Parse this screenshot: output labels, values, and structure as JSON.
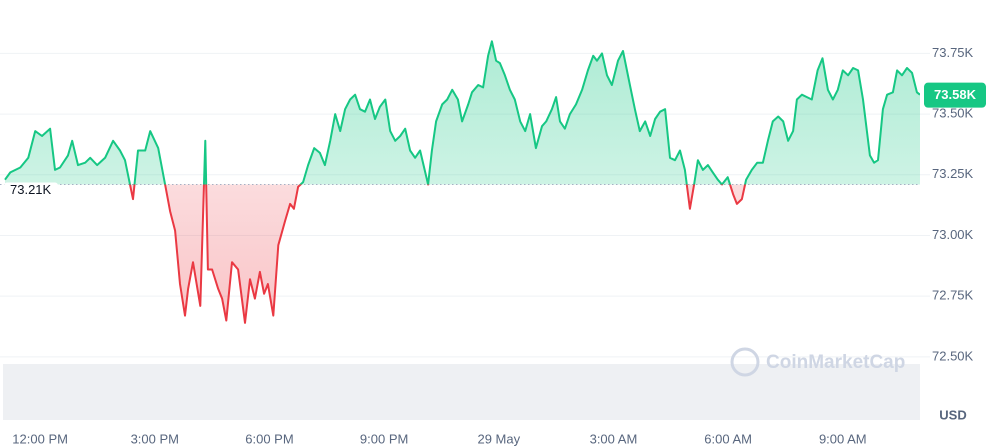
{
  "chart_data": {
    "type": "line",
    "x": [
      -0.92,
      -0.78,
      -0.52,
      -0.31,
      -0.13,
      0.05,
      0.26,
      0.39,
      0.52,
      0.73,
      0.84,
      0.99,
      1.18,
      1.31,
      1.49,
      1.7,
      1.91,
      2.09,
      2.22,
      2.43,
      2.56,
      2.75,
      2.88,
      3.09,
      3.27,
      3.4,
      3.53,
      3.66,
      3.79,
      3.87,
      4.0,
      4.19,
      4.32,
      4.39,
      4.5,
      4.66,
      4.76,
      4.87,
      5.02,
      5.18,
      5.36,
      5.49,
      5.62,
      5.75,
      5.86,
      5.96,
      6.1,
      6.23,
      6.41,
      6.54,
      6.64,
      6.75,
      6.88,
      7.01,
      7.17,
      7.32,
      7.45,
      7.59,
      7.72,
      7.85,
      7.98,
      8.11,
      8.24,
      8.37,
      8.5,
      8.63,
      8.76,
      8.89,
      9.03,
      9.16,
      9.29,
      9.42,
      9.55,
      9.68,
      9.81,
      9.94,
      10.15,
      10.25,
      10.36,
      10.52,
      10.65,
      10.78,
      10.93,
      11.04,
      11.2,
      11.3,
      11.46,
      11.59,
      11.72,
      11.82,
      11.93,
      12.03,
      12.16,
      12.29,
      12.42,
      12.56,
      12.69,
      12.82,
      12.97,
      13.13,
      13.24,
      13.39,
      13.5,
      13.6,
      13.73,
      13.86,
      14.02,
      14.18,
      14.33,
      14.47,
      14.57,
      14.7,
      14.83,
      14.96,
      15.12,
      15.25,
      15.43,
      15.56,
      15.69,
      15.83,
      15.96,
      16.09,
      16.22,
      16.35,
      16.48,
      16.61,
      16.74,
      16.87,
      17.0,
      17.11,
      17.21,
      17.34,
      17.47,
      17.6,
      17.73,
      17.84,
      17.99,
      18.13,
      18.23,
      18.36,
      18.47,
      18.62,
      18.76,
      18.91,
      19.04,
      19.17,
      19.31,
      19.44,
      19.57,
      19.7,
      19.8,
      19.93,
      20.06,
      20.19,
      20.34,
      20.47,
      20.61,
      20.74,
      20.87,
      21.0,
      21.14,
      21.27,
      21.4,
      21.53,
      21.63,
      21.71,
      21.82,
      21.92,
      22.05,
      22.16,
      22.31,
      22.42,
      22.55,
      22.68,
      22.81,
      22.94,
      23.02
    ],
    "values": [
      73230,
      73260,
      73280,
      73320,
      73430,
      73410,
      73440,
      73270,
      73280,
      73330,
      73390,
      73290,
      73300,
      73320,
      73290,
      73320,
      73390,
      73350,
      73310,
      73150,
      73350,
      73350,
      73430,
      73360,
      73210,
      73100,
      73020,
      72800,
      72670,
      72780,
      72890,
      72710,
      73390,
      72860,
      72860,
      72780,
      72740,
      72650,
      72890,
      72860,
      72640,
      72820,
      72740,
      72850,
      72760,
      72800,
      72670,
      72960,
      73060,
      73130,
      73110,
      73200,
      73220,
      73290,
      73360,
      73340,
      73290,
      73390,
      73500,
      73430,
      73520,
      73560,
      73580,
      73520,
      73510,
      73560,
      73480,
      73530,
      73560,
      73430,
      73390,
      73410,
      73440,
      73350,
      73320,
      73350,
      73210,
      73350,
      73470,
      73540,
      73560,
      73600,
      73560,
      73470,
      73540,
      73590,
      73620,
      73610,
      73740,
      73800,
      73720,
      73710,
      73660,
      73600,
      73560,
      73470,
      73430,
      73500,
      73360,
      73450,
      73470,
      73520,
      73570,
      73470,
      73440,
      73500,
      73540,
      73600,
      73680,
      73740,
      73720,
      73750,
      73660,
      73620,
      73720,
      73760,
      73620,
      73520,
      73430,
      73470,
      73410,
      73480,
      73510,
      73520,
      73320,
      73310,
      73350,
      73270,
      73110,
      73210,
      73310,
      73270,
      73290,
      73260,
      73230,
      73210,
      73240,
      73170,
      73130,
      73150,
      73230,
      73270,
      73300,
      73300,
      73390,
      73470,
      73490,
      73470,
      73390,
      73430,
      73560,
      73580,
      73570,
      73560,
      73680,
      73730,
      73600,
      73560,
      73600,
      73680,
      73660,
      73690,
      73680,
      73560,
      73430,
      73330,
      73300,
      73310,
      73520,
      73580,
      73590,
      73680,
      73660,
      73690,
      73670,
      73590,
      73580
    ],
    "color_up": "#16c784",
    "color_down": "#ea3943",
    "baseline": {
      "value": 73210,
      "label": "73.21K"
    },
    "last_price": {
      "value": 73580,
      "label": "73.58K"
    },
    "xlim": [
      -1.05,
      23.02
    ],
    "ylim": [
      72240,
      73970
    ],
    "xticks": [
      {
        "value": 0,
        "label": "12:00 PM"
      },
      {
        "value": 3,
        "label": "3:00 PM"
      },
      {
        "value": 6,
        "label": "6:00 PM"
      },
      {
        "value": 9,
        "label": "9:00 PM"
      },
      {
        "value": 12,
        "label": "29 May"
      },
      {
        "value": 15,
        "label": "3:00 AM"
      },
      {
        "value": 18,
        "label": "6:00 AM"
      },
      {
        "value": 21,
        "label": "9:00 AM"
      }
    ],
    "yticks": [
      {
        "value": 72500,
        "label": "72.50K"
      },
      {
        "value": 72750,
        "label": "72.75K"
      },
      {
        "value": 73000,
        "label": "73.00K"
      },
      {
        "value": 73250,
        "label": "73.25K"
      },
      {
        "value": 73500,
        "label": "73.50K"
      },
      {
        "value": 73750,
        "label": "73.75K"
      }
    ],
    "grid": true,
    "currency": "USD",
    "watermark": "CoinMarketCap"
  }
}
